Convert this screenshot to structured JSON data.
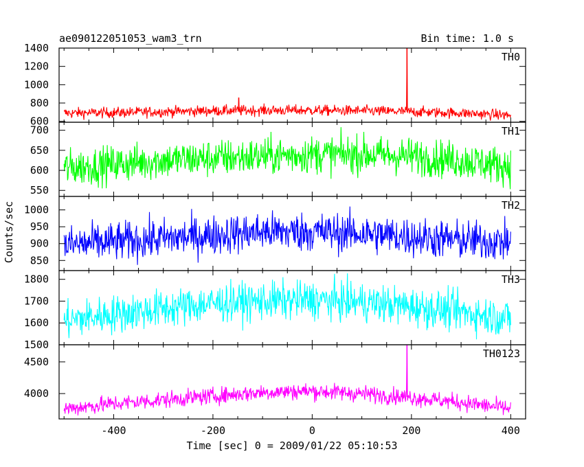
{
  "chart_data": {
    "type": "line",
    "title": "ae090122051053_wam3_trn",
    "subtitle": "Bin time: 1.0 s",
    "xlabel": "Time [sec] 0 = 2009/01/22 05:10:53",
    "ylabel": "Counts/sec",
    "xlim": [
      -510,
      430
    ],
    "x_ticks": [
      -400,
      -200,
      0,
      200,
      400
    ],
    "grid": false,
    "panels": [
      {
        "name": "TH0",
        "color": "#ff0000",
        "ylim": [
          590,
          1400
        ],
        "y_ticks": [
          600,
          800,
          1000,
          1200,
          1400
        ],
        "x": [
          -500,
          -400,
          -300,
          -200,
          -100,
          0,
          100,
          200,
          300,
          400
        ],
        "values": [
          690,
          695,
          705,
          715,
          720,
          720,
          715,
          705,
          690,
          665
        ],
        "noise": 40,
        "spikes": [
          {
            "x": 191,
            "y": 1400
          },
          {
            "x": -148,
            "y": 860
          }
        ]
      },
      {
        "name": "TH1",
        "color": "#00ff00",
        "ylim": [
          535,
          720
        ],
        "y_ticks": [
          550,
          600,
          650,
          700
        ],
        "x": [
          -500,
          -400,
          -300,
          -200,
          -100,
          0,
          100,
          200,
          300,
          400
        ],
        "values": [
          605,
          615,
          625,
          630,
          635,
          640,
          640,
          635,
          625,
          610
        ],
        "noise": 32,
        "spikes": []
      },
      {
        "name": "TH2",
        "color": "#0000ff",
        "ylim": [
          820,
          1040
        ],
        "y_ticks": [
          850,
          900,
          950,
          1000
        ],
        "x": [
          -500,
          -400,
          -300,
          -200,
          -100,
          0,
          100,
          200,
          300,
          400
        ],
        "values": [
          895,
          905,
          915,
          925,
          935,
          935,
          930,
          920,
          910,
          905
        ],
        "noise": 40,
        "spikes": []
      },
      {
        "name": "TH3",
        "color": "#00ffff",
        "ylim": [
          1500,
          1840
        ],
        "y_ticks": [
          1500,
          1600,
          1700,
          1800
        ],
        "x": [
          -500,
          -400,
          -300,
          -200,
          -100,
          0,
          100,
          200,
          300,
          400
        ],
        "values": [
          1610,
          1640,
          1665,
          1690,
          1700,
          1705,
          1695,
          1675,
          1650,
          1620
        ],
        "noise": 60,
        "spikes": []
      },
      {
        "name": "TH0123",
        "color": "#ff00ff",
        "ylim": [
          3600,
          4770
        ],
        "y_ticks": [
          4000,
          4500
        ],
        "x": [
          -500,
          -400,
          -300,
          -200,
          -100,
          0,
          100,
          200,
          300,
          400
        ],
        "values": [
          3760,
          3840,
          3900,
          3960,
          4020,
          4040,
          4000,
          3940,
          3860,
          3760
        ],
        "noise": 90,
        "spikes": [
          {
            "x": 191,
            "y": 4770
          }
        ]
      }
    ]
  }
}
